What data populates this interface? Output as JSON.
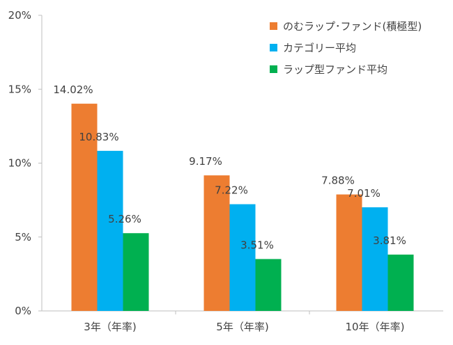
{
  "chart_data": {
    "type": "bar",
    "title": "",
    "xlabel": "",
    "ylabel": "",
    "categories": [
      "3年（年率)",
      "5年（年率)",
      "10年（年率)"
    ],
    "series": [
      {
        "name": "のむラップ･ファンド(積極型)",
        "color": "#ED7D31",
        "values": [
          14.02,
          9.17,
          7.88
        ],
        "labels": [
          "14.02%",
          "9.17%",
          "7.88%"
        ]
      },
      {
        "name": "カテゴリー平均",
        "color": "#00B0F0",
        "values": [
          10.83,
          7.22,
          7.01
        ],
        "labels": [
          "10.83%",
          "7.22%",
          "7.01%"
        ]
      },
      {
        "name": "ラップ型ファンド平均",
        "color": "#00B050",
        "values": [
          5.26,
          3.51,
          3.81
        ],
        "labels": [
          "5.26%",
          "3.51%",
          "3.81%"
        ]
      }
    ],
    "ylim": [
      0,
      20
    ],
    "yticks": [
      0,
      5,
      10,
      15,
      20
    ],
    "ytick_labels": [
      "0%",
      "5%",
      "10%",
      "15%",
      "20%"
    ],
    "grid": false,
    "legend_position": "top-right"
  }
}
